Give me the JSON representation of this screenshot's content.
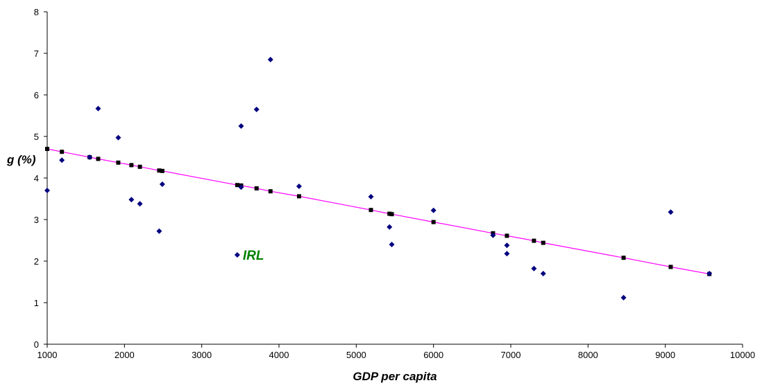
{
  "chart_data": {
    "type": "scatter",
    "title": "",
    "xlabel": "GDP per capita",
    "ylabel": "g (%)",
    "xlim": [
      1000,
      10000
    ],
    "ylim": [
      0,
      8
    ],
    "xticks": [
      1000,
      2000,
      3000,
      4000,
      5000,
      6000,
      7000,
      8000,
      9000,
      10000
    ],
    "yticks": [
      0,
      1,
      2,
      3,
      4,
      5,
      6,
      7,
      8
    ],
    "grid": false,
    "legend": "none",
    "colors": {
      "points": "#000080",
      "trend": "#FF00FF",
      "trend_markers": "#000000",
      "annotation": "#008000"
    },
    "series": [
      {
        "kind": "scatter",
        "x": [
          1000,
          1190,
          1550,
          1660,
          1920,
          2090,
          2200,
          2450,
          2490,
          3460,
          3510,
          3510,
          3710,
          3890,
          4260,
          5190,
          5430,
          5460,
          6000,
          6770,
          6950,
          6950,
          7300,
          7420,
          8460,
          9070,
          9570
        ],
        "y": [
          3.7,
          4.43,
          4.5,
          5.67,
          4.97,
          3.48,
          3.38,
          2.72,
          3.85,
          2.15,
          3.78,
          5.25,
          5.65,
          6.85,
          3.8,
          3.55,
          2.82,
          2.4,
          3.22,
          2.62,
          2.38,
          2.18,
          1.82,
          1.7,
          1.12,
          3.18,
          1.7
        ]
      },
      {
        "kind": "line",
        "x": [
          1000,
          1190,
          1550,
          1660,
          1920,
          2090,
          2200,
          2450,
          2490,
          3460,
          3510,
          3710,
          3890,
          4260,
          5190,
          5430,
          5460,
          6000,
          6770,
          6950,
          7300,
          7420,
          8460,
          9070,
          9570
        ],
        "y": [
          4.7,
          4.63,
          4.5,
          4.46,
          4.37,
          4.31,
          4.27,
          4.18,
          4.17,
          3.83,
          3.82,
          3.75,
          3.68,
          3.56,
          3.23,
          3.14,
          3.13,
          2.94,
          2.67,
          2.61,
          2.49,
          2.44,
          2.08,
          1.86,
          1.69
        ]
      }
    ],
    "annotations": [
      {
        "text": "IRL",
        "x": 3460,
        "y": 2.15
      }
    ]
  }
}
